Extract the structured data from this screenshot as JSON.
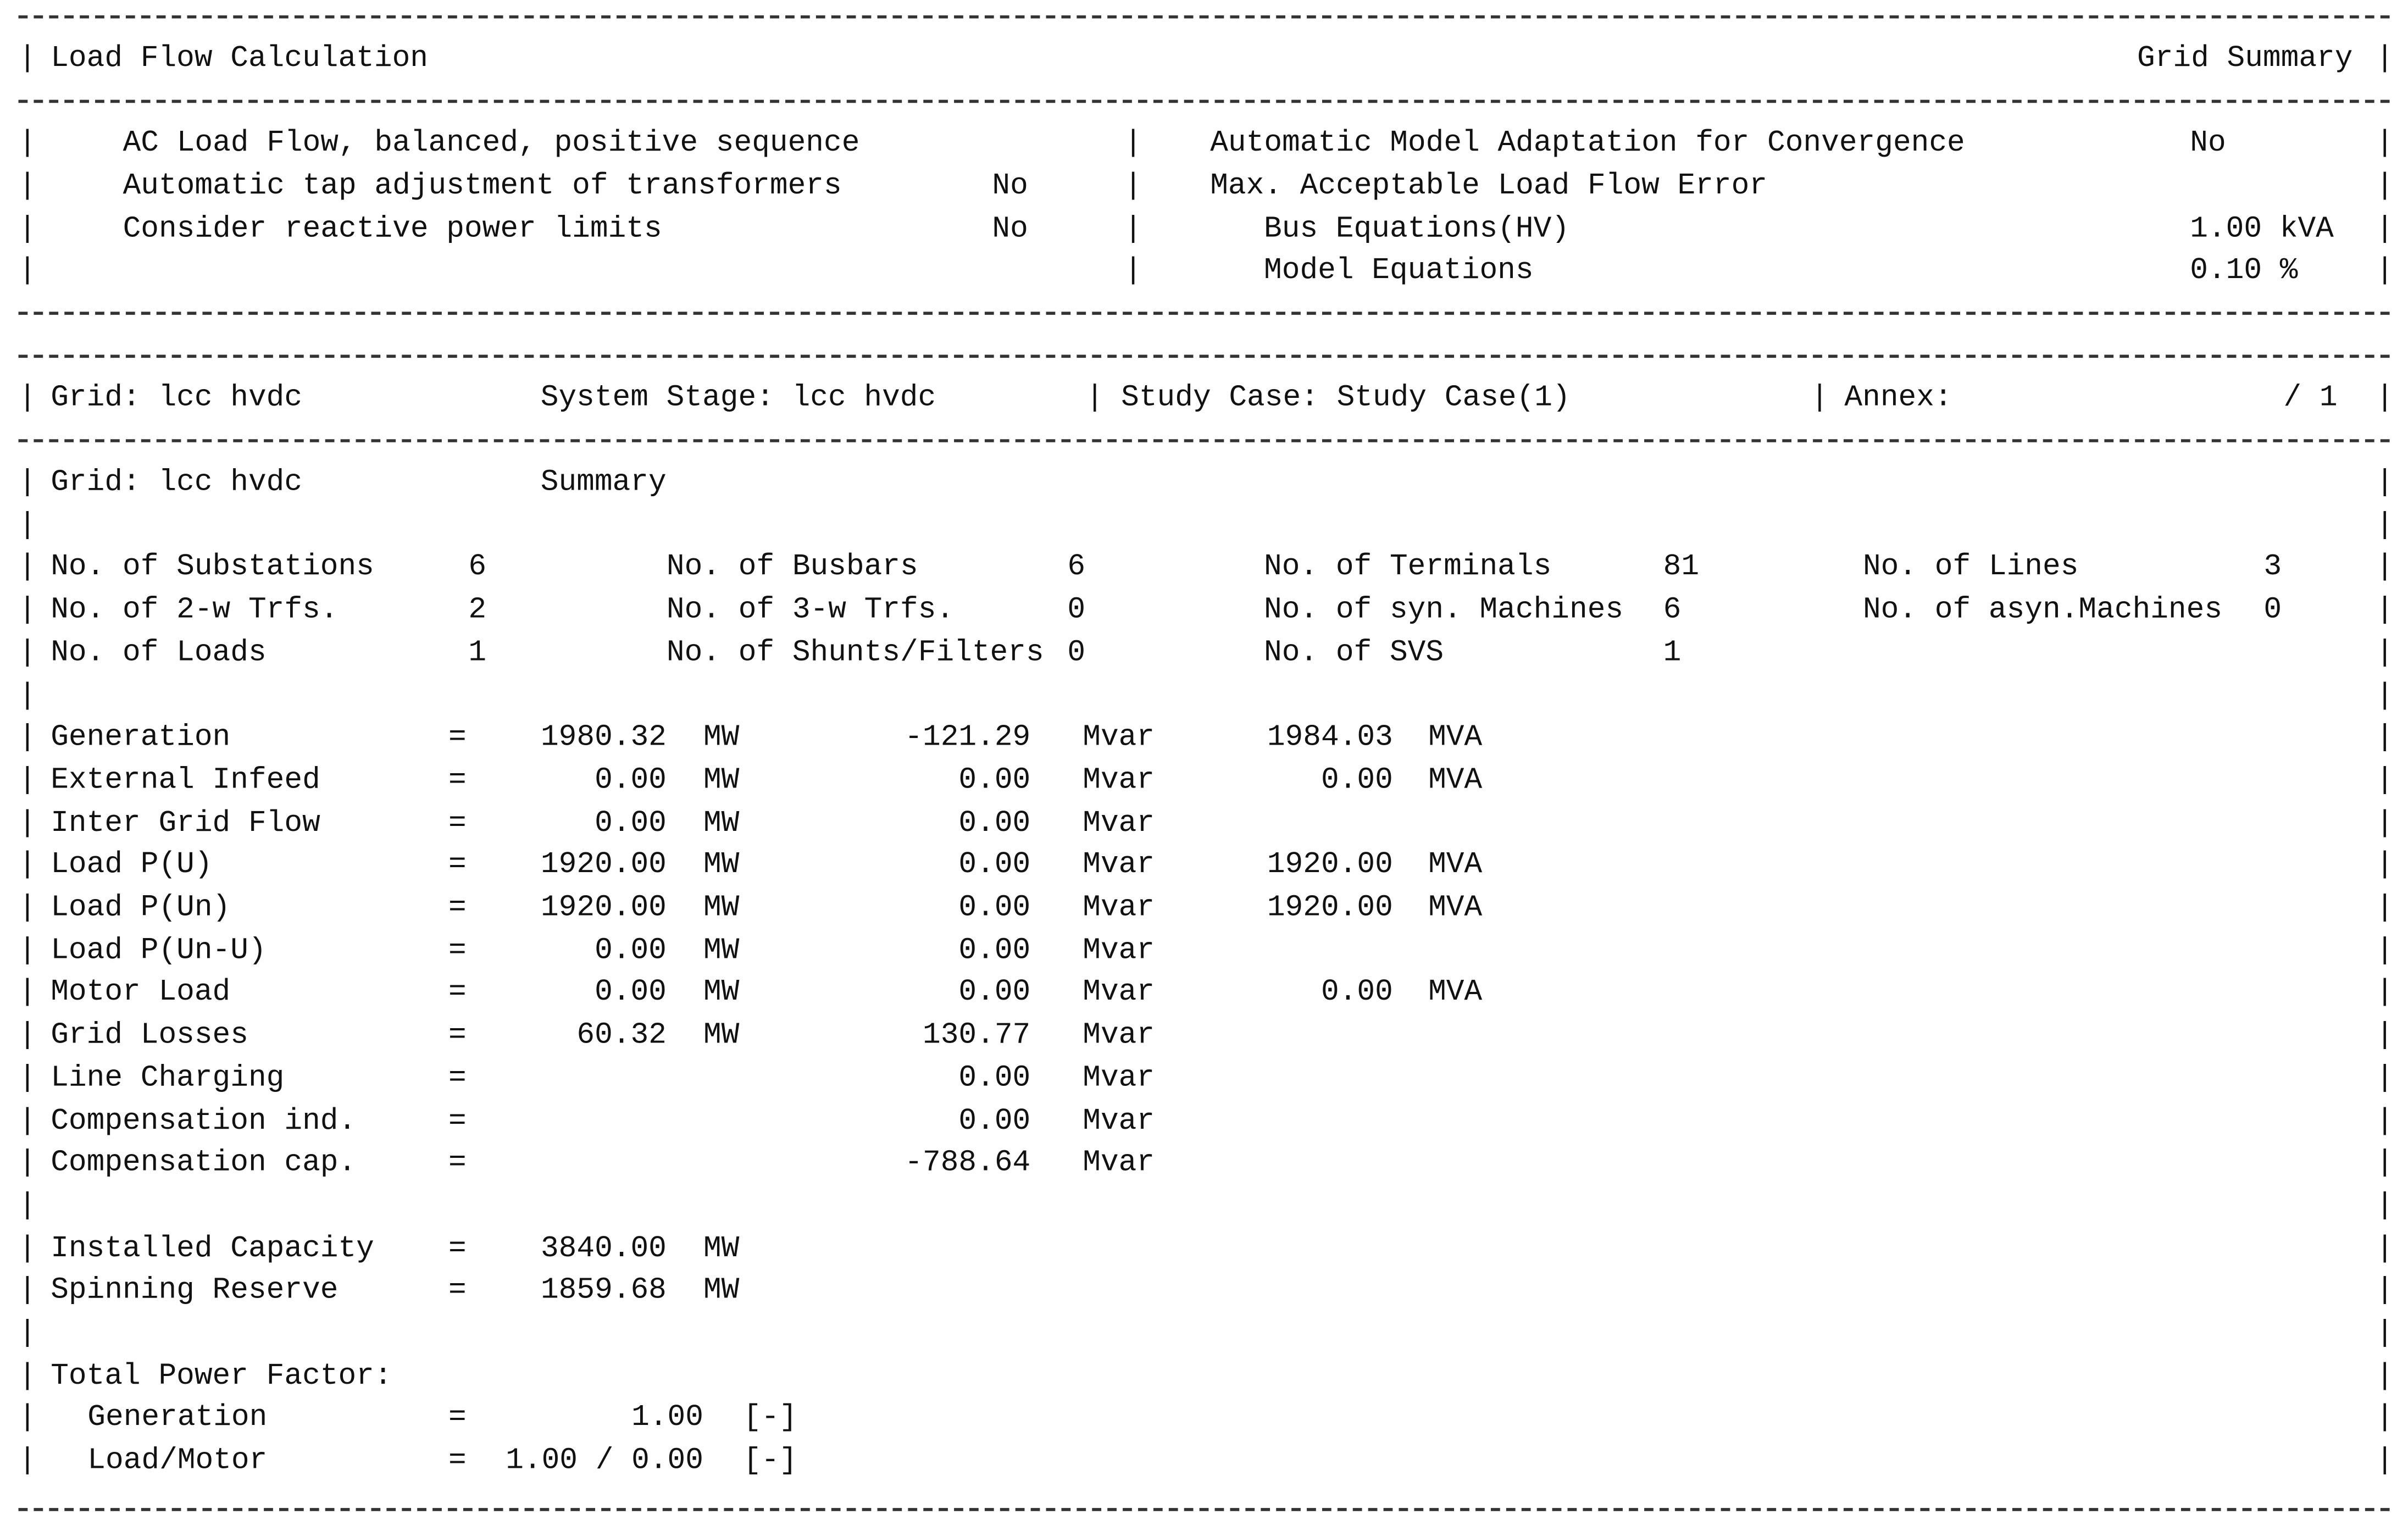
{
  "header": {
    "title": "Load Flow Calculation",
    "report_type": "Grid Summary"
  },
  "settings": {
    "left": [
      {
        "label": "AC Load Flow, balanced, positive sequence",
        "value": ""
      },
      {
        "label": "Automatic tap adjustment of transformers",
        "value": "No"
      },
      {
        "label": "Consider reactive power limits",
        "value": "No"
      }
    ],
    "right": {
      "model_adaptation_label": "Automatic Model Adaptation for Convergence",
      "model_adaptation_value": "No",
      "max_error_label": "Max. Acceptable Load Flow Error",
      "bus_equations_label": "Bus Equations(HV)",
      "bus_equations_value": "1.00 kVA",
      "model_equations_label": "Model Equations",
      "model_equations_value": "0.10 %"
    }
  },
  "context": {
    "grid": "Grid: lcc hvdc",
    "system_stage": "System Stage: lcc hvdc",
    "study_case": "Study Case: Study Case(1)",
    "annex_label": "Annex:",
    "annex_value": "/ 1"
  },
  "summary": {
    "grid": "Grid: lcc hvdc",
    "title": "Summary",
    "counts": [
      [
        {
          "label": "No. of Substations",
          "value": "6"
        },
        {
          "label": "No. of Busbars",
          "value": "6"
        },
        {
          "label": "No. of Terminals",
          "value": "81"
        },
        {
          "label": "No. of Lines",
          "value": "3"
        }
      ],
      [
        {
          "label": "No. of 2-w Trfs.",
          "value": "2"
        },
        {
          "label": "No. of 3-w Trfs.",
          "value": "0"
        },
        {
          "label": "No. of syn. Machines",
          "value": "6"
        },
        {
          "label": "No. of asyn.Machines",
          "value": "0"
        }
      ],
      [
        {
          "label": "No. of Loads",
          "value": "1"
        },
        {
          "label": "No. of Shunts/Filters",
          "value": "0"
        },
        {
          "label": "No. of SVS",
          "value": "1"
        },
        {
          "label": "",
          "value": ""
        }
      ]
    ],
    "power": [
      {
        "label": "Generation",
        "eq": "=",
        "p": "1980.32",
        "p_unit": "MW",
        "q": "-121.29",
        "q_unit": "Mvar",
        "s": "1984.03",
        "s_unit": "MVA"
      },
      {
        "label": "External Infeed",
        "eq": "=",
        "p": "0.00",
        "p_unit": "MW",
        "q": "0.00",
        "q_unit": "Mvar",
        "s": "0.00",
        "s_unit": "MVA"
      },
      {
        "label": "Inter Grid Flow",
        "eq": "=",
        "p": "0.00",
        "p_unit": "MW",
        "q": "0.00",
        "q_unit": "Mvar",
        "s": "",
        "s_unit": ""
      },
      {
        "label": "Load P(U)",
        "eq": "=",
        "p": "1920.00",
        "p_unit": "MW",
        "q": "0.00",
        "q_unit": "Mvar",
        "s": "1920.00",
        "s_unit": "MVA"
      },
      {
        "label": "Load P(Un)",
        "eq": "=",
        "p": "1920.00",
        "p_unit": "MW",
        "q": "0.00",
        "q_unit": "Mvar",
        "s": "1920.00",
        "s_unit": "MVA"
      },
      {
        "label": "Load P(Un-U)",
        "eq": "=",
        "p": "0.00",
        "p_unit": "MW",
        "q": "0.00",
        "q_unit": "Mvar",
        "s": "",
        "s_unit": ""
      },
      {
        "label": "Motor Load",
        "eq": "=",
        "p": "0.00",
        "p_unit": "MW",
        "q": "0.00",
        "q_unit": "Mvar",
        "s": "0.00",
        "s_unit": "MVA"
      },
      {
        "label": "Grid Losses",
        "eq": "=",
        "p": "60.32",
        "p_unit": "MW",
        "q": "130.77",
        "q_unit": "Mvar",
        "s": "",
        "s_unit": ""
      },
      {
        "label": "Line Charging",
        "eq": "=",
        "p": "",
        "p_unit": "",
        "q": "0.00",
        "q_unit": "Mvar",
        "s": "",
        "s_unit": ""
      },
      {
        "label": "Compensation ind.",
        "eq": "=",
        "p": "",
        "p_unit": "",
        "q": "0.00",
        "q_unit": "Mvar",
        "s": "",
        "s_unit": ""
      },
      {
        "label": "Compensation cap.",
        "eq": "=",
        "p": "",
        "p_unit": "",
        "q": "-788.64",
        "q_unit": "Mvar",
        "s": "",
        "s_unit": ""
      }
    ],
    "capacity": [
      {
        "label": "Installed Capacity",
        "eq": "=",
        "value": "3840.00",
        "unit": "MW"
      },
      {
        "label": "Spinning Reserve",
        "eq": "=",
        "value": "1859.68",
        "unit": "MW"
      }
    ],
    "power_factor": {
      "title": "Total Power Factor:",
      "rows": [
        {
          "label": "Generation",
          "eq": "=",
          "value": "1.00",
          "unit": "[-]"
        },
        {
          "label": "Load/Motor",
          "eq": "=",
          "value": "1.00 / 0.00",
          "unit": "[-]"
        }
      ]
    }
  }
}
